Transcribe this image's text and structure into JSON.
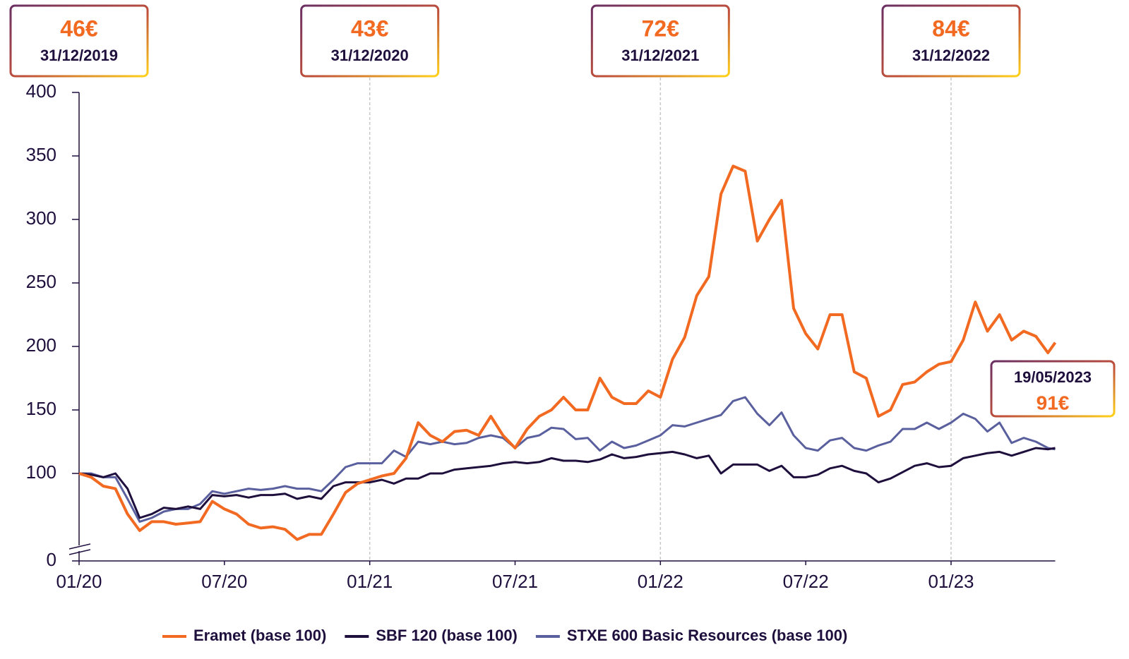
{
  "chart_data": {
    "type": "line",
    "x": [
      0,
      0.5,
      1,
      1.5,
      2,
      2.5,
      3,
      3.5,
      4,
      4.5,
      5,
      5.5,
      6,
      6.5,
      7,
      7.5,
      8,
      8.5,
      9,
      9.5,
      10,
      10.5,
      11,
      11.5,
      12,
      12.5,
      13,
      13.5,
      14,
      14.5,
      15,
      15.5,
      16,
      16.5,
      17,
      17.5,
      18,
      18.5,
      19,
      19.5,
      20,
      20.5,
      21,
      21.5,
      22,
      22.5,
      23,
      23.5,
      24,
      24.5,
      25,
      25.5,
      26,
      26.5,
      27,
      27.5,
      28,
      28.5,
      29,
      29.5,
      30,
      30.5,
      31,
      31.5,
      32,
      32.5,
      33,
      33.5,
      34,
      34.5,
      35,
      35.5,
      36,
      36.5,
      37,
      37.5,
      38,
      38.5,
      39,
      39.5,
      40,
      40.3
    ],
    "series": [
      {
        "name": "Eramet (base 100)",
        "color": "#f26a21",
        "values": [
          100,
          97,
          90,
          88,
          68,
          55,
          62,
          62,
          60,
          61,
          62,
          78,
          72,
          68,
          60,
          57,
          58,
          56,
          48,
          52,
          52,
          68,
          85,
          92,
          95,
          98,
          100,
          112,
          140,
          130,
          125,
          133,
          134,
          130,
          145,
          130,
          120,
          135,
          145,
          150,
          160,
          150,
          150,
          175,
          160,
          155,
          155,
          165,
          160,
          190,
          207,
          240,
          255,
          320,
          342,
          338,
          283,
          300,
          315,
          230,
          210,
          198,
          225,
          225,
          180,
          175,
          145,
          150,
          170,
          172,
          180,
          186,
          188,
          205,
          235,
          212,
          225,
          205,
          212,
          208,
          195,
          203
        ]
      },
      {
        "name": "SBF 120  (base 100)",
        "color": "#1e0f3d",
        "values": [
          100,
          99,
          97,
          100,
          88,
          65,
          68,
          73,
          72,
          74,
          72,
          83,
          82,
          83,
          81,
          83,
          83,
          84,
          80,
          82,
          80,
          90,
          93,
          93,
          93,
          95,
          92,
          96,
          96,
          100,
          100,
          103,
          104,
          105,
          106,
          108,
          109,
          108,
          109,
          112,
          110,
          110,
          109,
          111,
          115,
          112,
          113,
          115,
          116,
          117,
          115,
          112,
          114,
          100,
          107,
          107,
          107,
          102,
          106,
          97,
          97,
          99,
          104,
          106,
          102,
          100,
          93,
          96,
          101,
          106,
          108,
          105,
          106,
          112,
          114,
          116,
          117,
          114,
          117,
          120,
          119,
          120
        ]
      },
      {
        "name": "STXE 600 Basic Resources (base 100)",
        "color": "#5a5f9e",
        "values": [
          100,
          100,
          97,
          97,
          80,
          62,
          65,
          70,
          72,
          72,
          76,
          86,
          84,
          86,
          88,
          87,
          88,
          90,
          88,
          88,
          86,
          95,
          105,
          108,
          108,
          108,
          118,
          113,
          125,
          123,
          125,
          123,
          124,
          128,
          130,
          128,
          120,
          128,
          130,
          136,
          135,
          127,
          128,
          118,
          125,
          120,
          122,
          126,
          130,
          138,
          137,
          140,
          143,
          146,
          157,
          160,
          147,
          138,
          148,
          130,
          120,
          118,
          126,
          128,
          120,
          118,
          122,
          125,
          135,
          135,
          140,
          135,
          140,
          147,
          143,
          133,
          140,
          124,
          128,
          125,
          120,
          119
        ]
      }
    ],
    "xlim": [
      0,
      40.3
    ],
    "xticks": [
      {
        "value": 0,
        "label": "01/20"
      },
      {
        "value": 6,
        "label": "07/20"
      },
      {
        "value": 12,
        "label": "01/21"
      },
      {
        "value": 18,
        "label": "07/21"
      },
      {
        "value": 24,
        "label": "01/22"
      },
      {
        "value": 30,
        "label": "07/22"
      },
      {
        "value": 36,
        "label": "01/23"
      }
    ],
    "ylim": [
      0,
      400
    ],
    "yticks": [
      0,
      100,
      150,
      200,
      250,
      300,
      350,
      400
    ],
    "axis_break": true,
    "annotations": [
      {
        "price": "46€",
        "date": "31/12/2019",
        "x": 0
      },
      {
        "price": "43€",
        "date": "31/12/2020",
        "x": 12
      },
      {
        "price": "72€",
        "date": "31/12/2021",
        "x": 24
      },
      {
        "price": "84€",
        "date": "31/12/2022",
        "x": 36
      }
    ],
    "last_annotation": {
      "date": "19/05/2023",
      "price": "91€"
    }
  }
}
